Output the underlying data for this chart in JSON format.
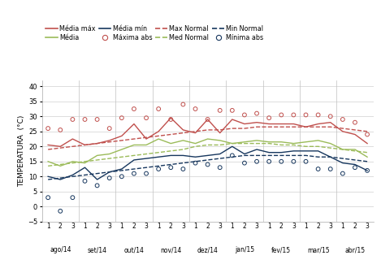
{
  "x": [
    1,
    2,
    3,
    4,
    5,
    6,
    7,
    8,
    9,
    10,
    11,
    12,
    13,
    14,
    15,
    16,
    17,
    18,
    19,
    20,
    21,
    22,
    23,
    24,
    25,
    26,
    27
  ],
  "media_max": [
    20.5,
    20.0,
    22.5,
    20.5,
    21.0,
    22.0,
    23.5,
    27.5,
    22.5,
    25.0,
    29.5,
    25.5,
    24.5,
    29.0,
    24.5,
    29.0,
    27.5,
    28.0,
    27.5,
    27.5,
    27.5,
    26.5,
    27.5,
    28.0,
    25.0,
    24.0,
    21.0
  ],
  "media": [
    15.0,
    13.5,
    15.0,
    14.5,
    17.0,
    17.5,
    19.0,
    20.5,
    20.5,
    22.5,
    21.0,
    22.0,
    21.0,
    22.5,
    22.0,
    21.0,
    21.5,
    22.0,
    21.5,
    21.5,
    21.0,
    21.5,
    22.0,
    21.0,
    19.0,
    19.0,
    16.5
  ],
  "media_min": [
    10.0,
    9.0,
    10.5,
    13.0,
    9.0,
    11.5,
    12.5,
    15.5,
    16.0,
    16.5,
    17.0,
    17.0,
    16.5,
    17.0,
    17.5,
    20.0,
    17.5,
    19.0,
    18.0,
    18.0,
    18.5,
    18.5,
    18.5,
    16.5,
    14.5,
    14.0,
    12.0
  ],
  "max_normal": [
    19.0,
    19.5,
    20.0,
    20.5,
    21.0,
    21.5,
    22.0,
    22.5,
    23.0,
    23.5,
    24.0,
    24.5,
    25.0,
    25.5,
    25.5,
    26.0,
    26.0,
    26.5,
    26.5,
    26.5,
    26.5,
    26.5,
    26.5,
    26.5,
    26.0,
    25.5,
    25.0
  ],
  "med_normal": [
    13.5,
    14.0,
    14.5,
    15.0,
    15.5,
    16.0,
    16.5,
    17.0,
    17.5,
    18.0,
    18.5,
    19.0,
    20.0,
    20.5,
    20.5,
    21.0,
    21.0,
    21.0,
    21.0,
    20.5,
    20.5,
    20.0,
    20.0,
    19.5,
    19.0,
    18.5,
    18.0
  ],
  "min_normal": [
    9.0,
    9.5,
    10.0,
    10.5,
    11.0,
    11.5,
    12.0,
    12.5,
    13.0,
    13.5,
    14.0,
    14.5,
    15.0,
    15.5,
    16.0,
    16.5,
    17.0,
    17.0,
    17.0,
    17.0,
    17.0,
    17.0,
    16.5,
    16.5,
    16.0,
    15.5,
    15.0
  ],
  "maxima_abs": [
    26.0,
    25.5,
    29.0,
    29.0,
    29.0,
    26.0,
    29.5,
    32.5,
    29.5,
    32.5,
    29.0,
    34.0,
    32.5,
    29.0,
    32.0,
    32.0,
    30.5,
    31.0,
    29.5,
    30.5,
    30.5,
    30.5,
    30.5,
    30.0,
    29.0,
    28.0,
    24.0
  ],
  "minima_abs": [
    3.0,
    -1.5,
    3.0,
    8.5,
    7.0,
    9.5,
    10.0,
    11.0,
    11.0,
    12.5,
    13.0,
    12.5,
    14.5,
    14.0,
    13.0,
    17.0,
    14.5,
    15.0,
    15.0,
    15.0,
    15.0,
    15.0,
    12.5,
    12.5,
    11.0,
    13.0,
    12.0
  ],
  "month_labels": [
    "ago/14",
    "set/14",
    "out/14",
    "nov/14",
    "dez/14",
    "jan/15",
    "fev/15",
    "mar/15",
    "abr/15"
  ],
  "sublabels": [
    1,
    2,
    3,
    1,
    2,
    3,
    1,
    2,
    3,
    1,
    2,
    3,
    1,
    2,
    3,
    1,
    2,
    3,
    1,
    2,
    3,
    1,
    2,
    3,
    1,
    2,
    3
  ],
  "month_centers": [
    2,
    5,
    8,
    11,
    14,
    17,
    20,
    23,
    26
  ],
  "ylim": [
    -5,
    42
  ],
  "yticks": [
    -5,
    0,
    5,
    10,
    15,
    20,
    25,
    30,
    35,
    40
  ],
  "ylabel": "TEMPERATURA  (°C)",
  "color_red": "#c0504d",
  "color_green": "#9bbb59",
  "color_blue": "#17375e"
}
